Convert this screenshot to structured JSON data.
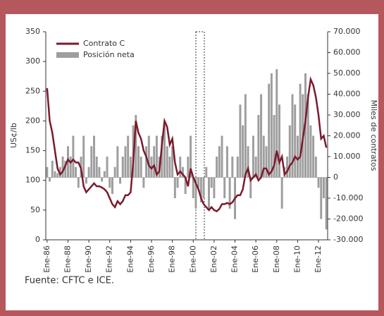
{
  "chart_data": {
    "type": "line-bar",
    "ylabel": "US¢/lb",
    "y2label": "Miles de contratos",
    "source": "Fuente: CFTC e ICE.",
    "categories": [
      "Ene-86",
      null,
      null,
      null,
      null,
      null,
      null,
      null,
      "Ene-88",
      null,
      null,
      null,
      null,
      null,
      null,
      null,
      "Ene-90",
      null,
      null,
      null,
      null,
      null,
      null,
      null,
      "Ene-92",
      null,
      null,
      null,
      null,
      null,
      null,
      null,
      "Ene-94",
      null,
      null,
      null,
      null,
      null,
      null,
      null,
      "Ene-96",
      null,
      null,
      null,
      null,
      null,
      null,
      null,
      "Ene-98",
      null,
      null,
      null,
      null,
      null,
      null,
      null,
      "Ene-00",
      null,
      null,
      null,
      null,
      null,
      null,
      null,
      "Ene-02",
      null,
      null,
      null,
      null,
      null,
      null,
      null,
      "Ene-04",
      null,
      null,
      null,
      null,
      null,
      null,
      null,
      "Ene-06",
      null,
      null,
      null,
      null,
      null,
      null,
      null,
      "Ene-08",
      null,
      null,
      null,
      null,
      null,
      null,
      null,
      "Ene-10",
      null,
      null,
      null,
      null,
      null,
      null,
      null,
      "Ene-12",
      null,
      null,
      null
    ],
    "series": [
      {
        "name": "Contrato C",
        "color": "#7b1a2c",
        "kind": "line",
        "axis": "y",
        "values": [
          255,
          200,
          180,
          150,
          120,
          110,
          115,
          125,
          135,
          130,
          135,
          130,
          130,
          120,
          90,
          80,
          85,
          90,
          95,
          90,
          90,
          88,
          85,
          80,
          70,
          60,
          55,
          65,
          60,
          65,
          75,
          75,
          80,
          130,
          200,
          180,
          170,
          150,
          140,
          125,
          120,
          125,
          110,
          115,
          160,
          200,
          190,
          160,
          170,
          130,
          110,
          115,
          110,
          105,
          90,
          120,
          105,
          95,
          85,
          70,
          60,
          55,
          50,
          55,
          50,
          48,
          52,
          60,
          60,
          62,
          60,
          63,
          70,
          75,
          75,
          85,
          110,
          120,
          100,
          105,
          110,
          100,
          105,
          120,
          120,
          110,
          115,
          125,
          150,
          130,
          140,
          110,
          115,
          125,
          130,
          140,
          135,
          140,
          170,
          200,
          240,
          270,
          260,
          240,
          210,
          170,
          175,
          155
        ]
      },
      {
        "name": "Posición neta",
        "color": "#9e9e9e",
        "kind": "bar",
        "axis": "y2",
        "values": [
          5000,
          -2000,
          8000,
          3000,
          2000,
          5000,
          10000,
          8000,
          15000,
          10000,
          20000,
          5000,
          -5000,
          10000,
          20000,
          -3000,
          5000,
          15000,
          20000,
          10000,
          5000,
          -2000,
          3000,
          10000,
          -5000,
          -8000,
          5000,
          15000,
          -3000,
          10000,
          15000,
          20000,
          10000,
          25000,
          30000,
          15000,
          10000,
          -5000,
          15000,
          20000,
          10000,
          15000,
          20000,
          10000,
          20000,
          25000,
          15000,
          10000,
          15000,
          -10000,
          -5000,
          10000,
          5000,
          -8000,
          10000,
          20000,
          -10000,
          -15000,
          -5000,
          -12000,
          -10000,
          5000,
          -15000,
          -5000,
          -10000,
          10000,
          15000,
          20000,
          -10000,
          15000,
          -15000,
          10000,
          -20000,
          10000,
          35000,
          25000,
          40000,
          15000,
          -10000,
          20000,
          10000,
          30000,
          40000,
          20000,
          15000,
          45000,
          50000,
          30000,
          52000,
          35000,
          -15000,
          5000,
          10000,
          25000,
          40000,
          35000,
          20000,
          45000,
          40000,
          50000,
          40000,
          25000,
          20000,
          10000,
          -5000,
          -20000,
          -10000,
          -25000
        ]
      }
    ],
    "ylim": [
      0,
      350
    ],
    "yticks": [
      0,
      50,
      100,
      150,
      200,
      250,
      300,
      350
    ],
    "y2lim": [
      -30000,
      70000
    ],
    "y2ticks": [
      {
        "value": -30000,
        "label": "-30.000"
      },
      {
        "value": -20000,
        "label": "-20.000"
      },
      {
        "value": -10000,
        "label": "-10.000"
      },
      0,
      {
        "value": 10000,
        "label": "10.000"
      },
      {
        "value": 20000,
        "label": "20.000"
      },
      {
        "value": 30000,
        "label": "30.000"
      },
      {
        "value": 40000,
        "label": "40.000"
      },
      {
        "value": 50000,
        "label": "50.000"
      },
      {
        "value": 60000,
        "label": "60.000"
      },
      {
        "value": 70000,
        "label": "70.000"
      }
    ],
    "legend": "top-left"
  }
}
